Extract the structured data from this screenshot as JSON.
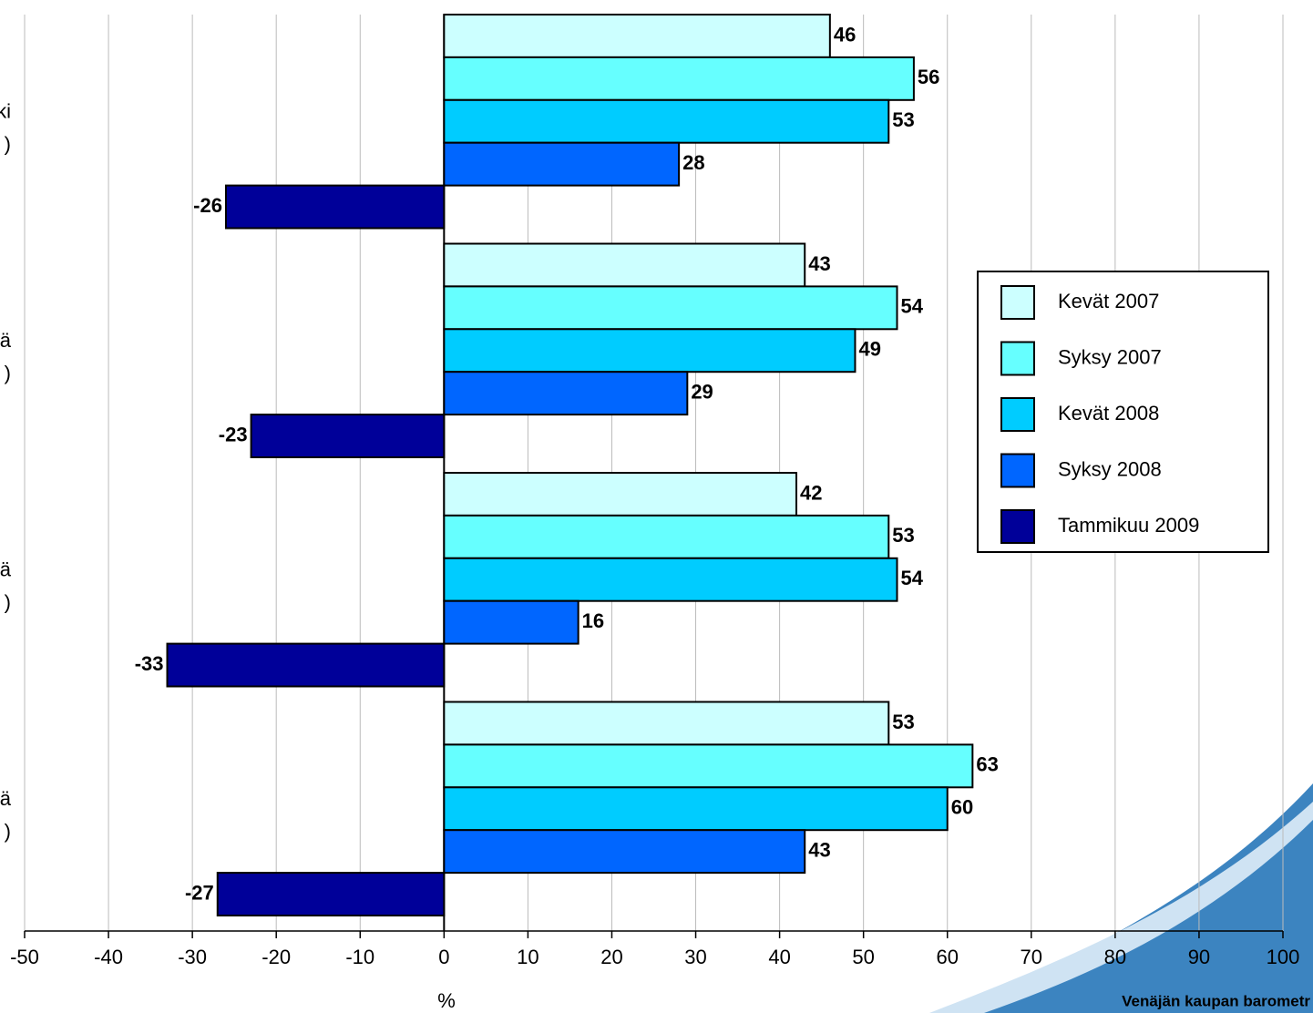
{
  "chart_data": {
    "type": "hbar",
    "categories": [
      [
        "ki",
        ")"
      ],
      [
        "ä",
        ")"
      ],
      [
        "ä",
        ")"
      ],
      [
        "ä",
        ")"
      ]
    ],
    "series": [
      {
        "name": "Kevät 2007",
        "color": "#ccffff",
        "values": [
          46,
          43,
          42,
          53
        ]
      },
      {
        "name": "Syksy 2007",
        "color": "#66ffff",
        "values": [
          56,
          54,
          53,
          63
        ]
      },
      {
        "name": "Kevät 2008",
        "color": "#00ccff",
        "values": [
          53,
          49,
          54,
          60
        ]
      },
      {
        "name": "Syksy 2008",
        "color": "#0066ff",
        "values": [
          28,
          29,
          16,
          43
        ]
      },
      {
        "name": "Tammikuu 2009",
        "color": "#000099",
        "values": [
          -26,
          -23,
          -33,
          -27
        ]
      }
    ],
    "xlim": [
      -50,
      100
    ],
    "xticks": [
      -50,
      -40,
      -30,
      -20,
      -10,
      0,
      10,
      20,
      30,
      40,
      50,
      60,
      70,
      80,
      90,
      100
    ],
    "x_label": "%",
    "grid": true,
    "legend": "right",
    "source": "Venäjän kaupan barometr"
  }
}
